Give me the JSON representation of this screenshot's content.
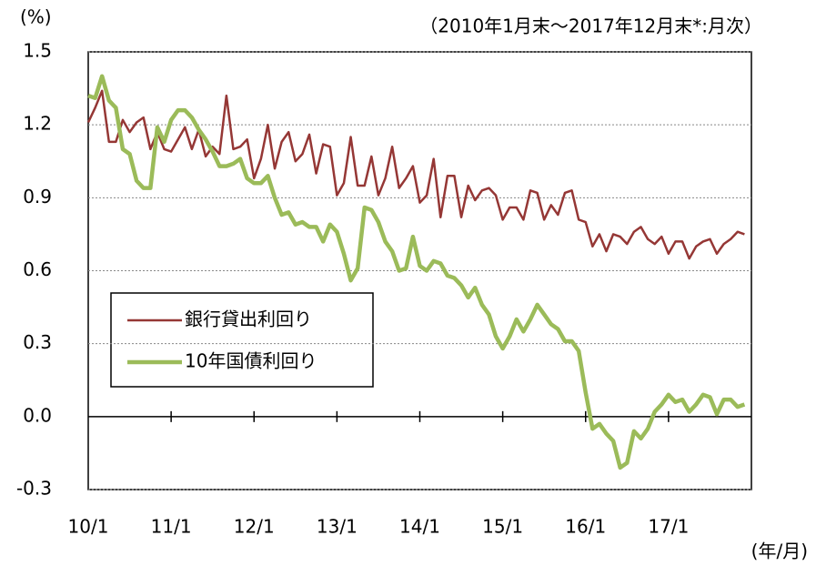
{
  "chart_data": {
    "type": "line",
    "subtitle": "（2010年1月末～2017年12月末*:月次）",
    "y_label": "(%)",
    "x_label": "(年/月)",
    "categories": [
      "10/1",
      null,
      null,
      null,
      null,
      null,
      null,
      null,
      null,
      null,
      null,
      null,
      "11/1",
      null,
      null,
      null,
      null,
      null,
      null,
      null,
      null,
      null,
      null,
      null,
      "12/1",
      null,
      null,
      null,
      null,
      null,
      null,
      null,
      null,
      null,
      null,
      null,
      "13/1",
      null,
      null,
      null,
      null,
      null,
      null,
      null,
      null,
      null,
      null,
      null,
      "14/1",
      null,
      null,
      null,
      null,
      null,
      null,
      null,
      null,
      null,
      null,
      null,
      "15/1",
      null,
      null,
      null,
      null,
      null,
      null,
      null,
      null,
      null,
      null,
      null,
      "16/1",
      null,
      null,
      null,
      null,
      null,
      null,
      null,
      null,
      null,
      null,
      null,
      "17/1",
      null,
      null,
      null,
      null,
      null,
      null,
      null,
      null,
      null,
      null,
      null
    ],
    "series": [
      {
        "name": "銀行貸出利回り",
        "color": "#953735",
        "values": [
          1.21,
          1.27,
          1.34,
          1.13,
          1.13,
          1.22,
          1.17,
          1.21,
          1.23,
          1.1,
          1.17,
          1.1,
          1.09,
          1.14,
          1.19,
          1.1,
          1.18,
          1.07,
          1.11,
          1.08,
          1.32,
          1.1,
          1.11,
          1.14,
          0.98,
          1.06,
          1.2,
          1.02,
          1.13,
          1.17,
          1.05,
          1.08,
          1.16,
          1.0,
          1.12,
          1.11,
          0.91,
          0.96,
          1.15,
          0.95,
          0.95,
          1.07,
          0.91,
          0.98,
          1.11,
          0.94,
          0.98,
          1.03,
          0.88,
          0.91,
          1.06,
          0.82,
          0.99,
          0.99,
          0.82,
          0.95,
          0.89,
          0.93,
          0.94,
          0.91,
          0.81,
          0.86,
          0.86,
          0.81,
          0.93,
          0.92,
          0.81,
          0.87,
          0.83,
          0.92,
          0.93,
          0.81,
          0.8,
          0.7,
          0.75,
          0.68,
          0.75,
          0.74,
          0.71,
          0.76,
          0.78,
          0.73,
          0.71,
          0.74,
          0.67,
          0.72,
          0.72,
          0.65,
          0.7,
          0.72,
          0.73,
          0.67,
          0.71,
          0.73,
          0.76,
          0.75
        ]
      },
      {
        "name": "10年国債利回り",
        "color": "#9bbb59",
        "values": [
          1.32,
          1.31,
          1.4,
          1.3,
          1.27,
          1.1,
          1.08,
          0.97,
          0.94,
          0.94,
          1.19,
          1.13,
          1.22,
          1.26,
          1.26,
          1.23,
          1.18,
          1.14,
          1.09,
          1.03,
          1.03,
          1.04,
          1.06,
          0.98,
          0.96,
          0.96,
          0.99,
          0.9,
          0.83,
          0.84,
          0.79,
          0.8,
          0.78,
          0.78,
          0.72,
          0.79,
          0.76,
          0.67,
          0.56,
          0.61,
          0.86,
          0.85,
          0.8,
          0.72,
          0.68,
          0.6,
          0.61,
          0.74,
          0.62,
          0.6,
          0.64,
          0.63,
          0.58,
          0.57,
          0.54,
          0.49,
          0.53,
          0.46,
          0.42,
          0.33,
          0.28,
          0.33,
          0.4,
          0.35,
          0.4,
          0.46,
          0.42,
          0.38,
          0.36,
          0.31,
          0.31,
          0.27,
          0.1,
          -0.05,
          -0.03,
          -0.07,
          -0.1,
          -0.21,
          -0.19,
          -0.06,
          -0.09,
          -0.05,
          0.02,
          0.05,
          0.09,
          0.06,
          0.07,
          0.02,
          0.05,
          0.09,
          0.08,
          0.01,
          0.07,
          0.07,
          0.04,
          0.05
        ]
      }
    ],
    "ylim": [
      -0.3,
      1.5
    ],
    "yticks": [
      1.5,
      1.2,
      0.9,
      0.6,
      0.3,
      {
        "value": 0,
        "label": "0.0"
      },
      -0.3
    ],
    "grid": true
  }
}
